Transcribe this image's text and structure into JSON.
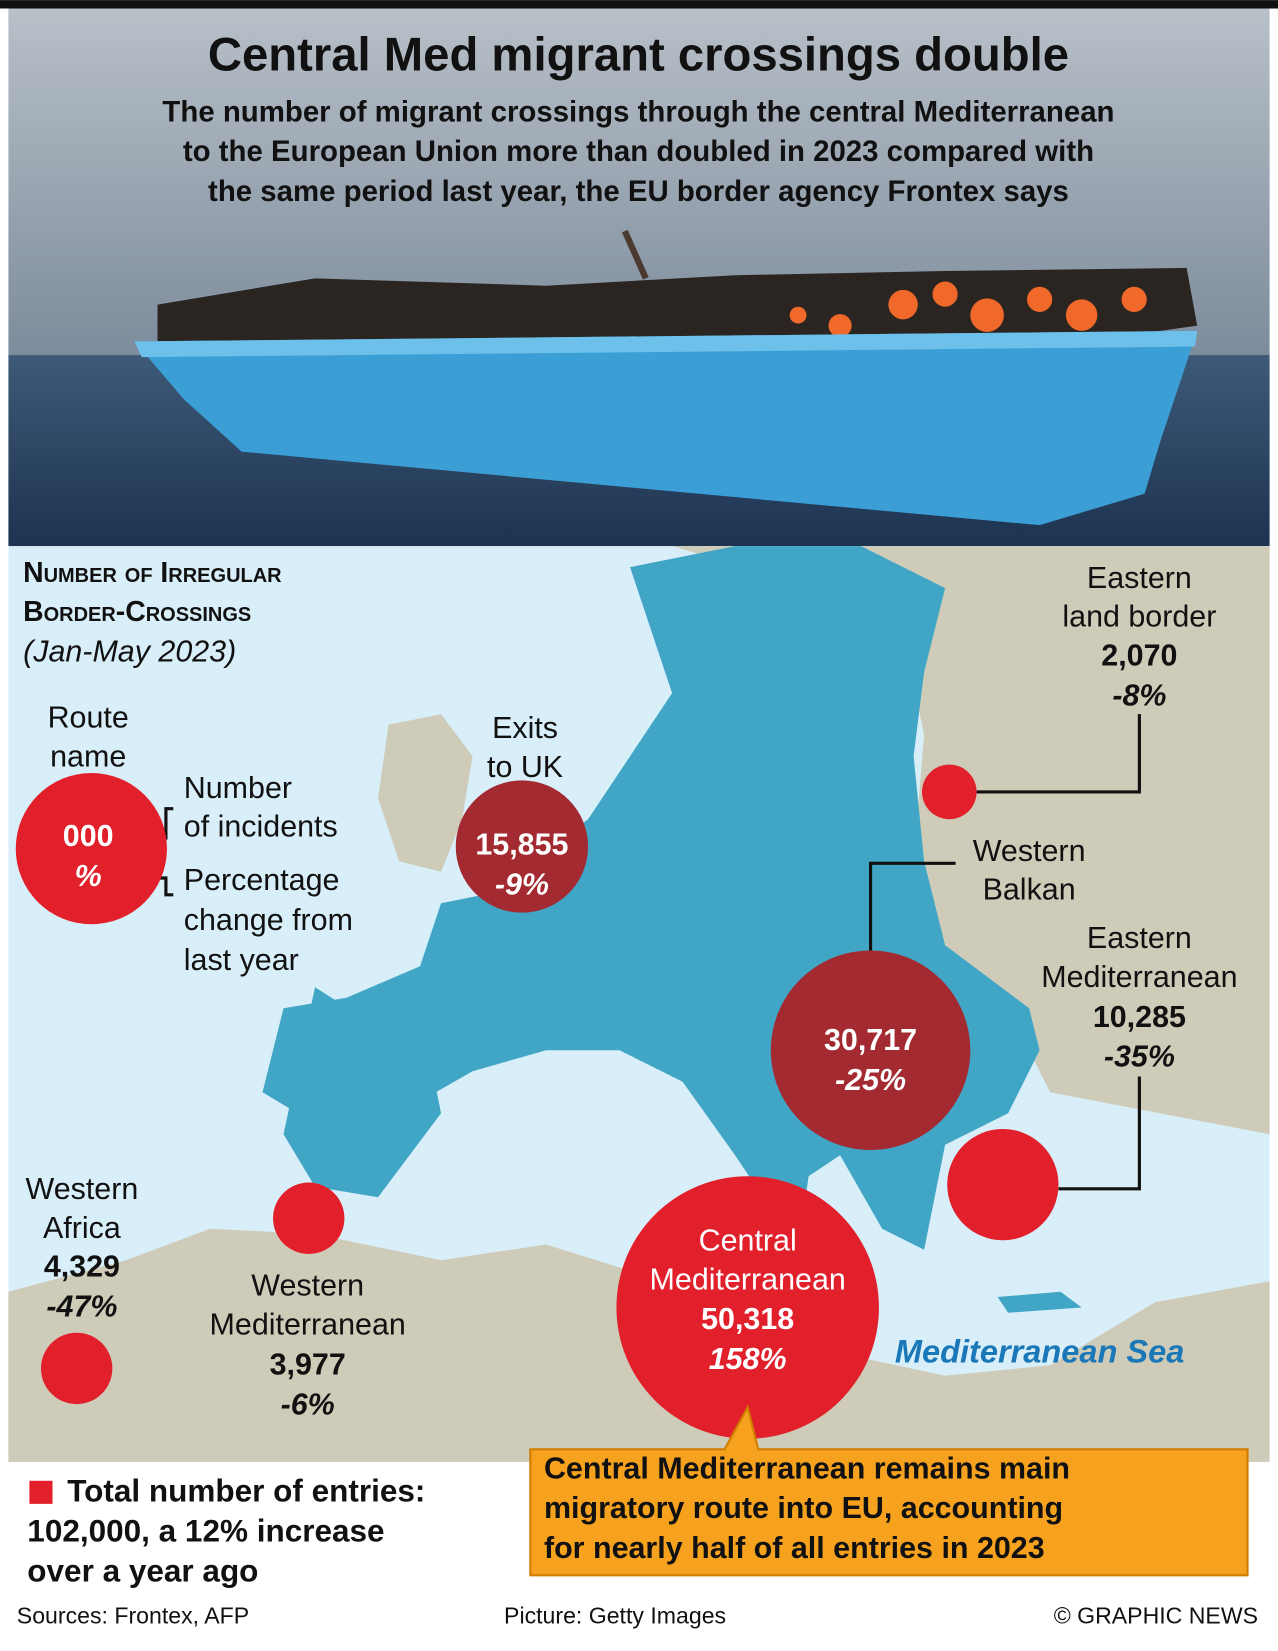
{
  "header": {
    "title": "Central Med migrant crossings double",
    "subtitle": [
      "The number of migrant crossings through the central Mediterranean",
      "to the European Union more than doubled in 2023 compared with",
      "the same period last year, the EU border agency Frontex says"
    ]
  },
  "map": {
    "heading": [
      "Number of Irregular",
      "Border-Crossings"
    ],
    "period": "(Jan-May 2023)",
    "sea_label": "Mediterranean Sea",
    "key": {
      "route_name": [
        "Route",
        "name"
      ],
      "number": "000",
      "percent": "%",
      "number_caption": [
        "Number",
        "of incidents"
      ],
      "percent_caption": [
        "Percentage",
        "change from",
        "last year"
      ]
    },
    "routes": [
      {
        "name": [
          "Exits",
          "to UK"
        ],
        "count": "15,855",
        "change": "-9%"
      },
      {
        "name": [
          "Eastern",
          "land border"
        ],
        "count": "2,070",
        "change": "-8%"
      },
      {
        "name": [
          "Western",
          "Balkan"
        ],
        "count": "30,717",
        "change": "-25%"
      },
      {
        "name": [
          "Eastern",
          "Mediterranean"
        ],
        "count": "10,285",
        "change": "-35%"
      },
      {
        "name": [
          "Central",
          "Mediterranean"
        ],
        "count": "50,318",
        "change": "158%"
      },
      {
        "name": [
          "Western",
          "Mediterranean"
        ],
        "count": "3,977",
        "change": "-6%"
      },
      {
        "name": [
          "Western",
          "Africa"
        ],
        "count": "4,329",
        "change": "-47%"
      }
    ]
  },
  "footer": {
    "total": [
      "Total number of entries:",
      "102,000, a 12% increase",
      "over a year ago"
    ],
    "callout": [
      "Central Mediterranean remains main",
      "migratory route into EU, accounting",
      "for nearly half of all entries in 2023"
    ],
    "sources": "Sources: Frontex, AFP",
    "picture": "Picture: Getty Images",
    "credit": "© GRAPHIC NEWS"
  }
}
